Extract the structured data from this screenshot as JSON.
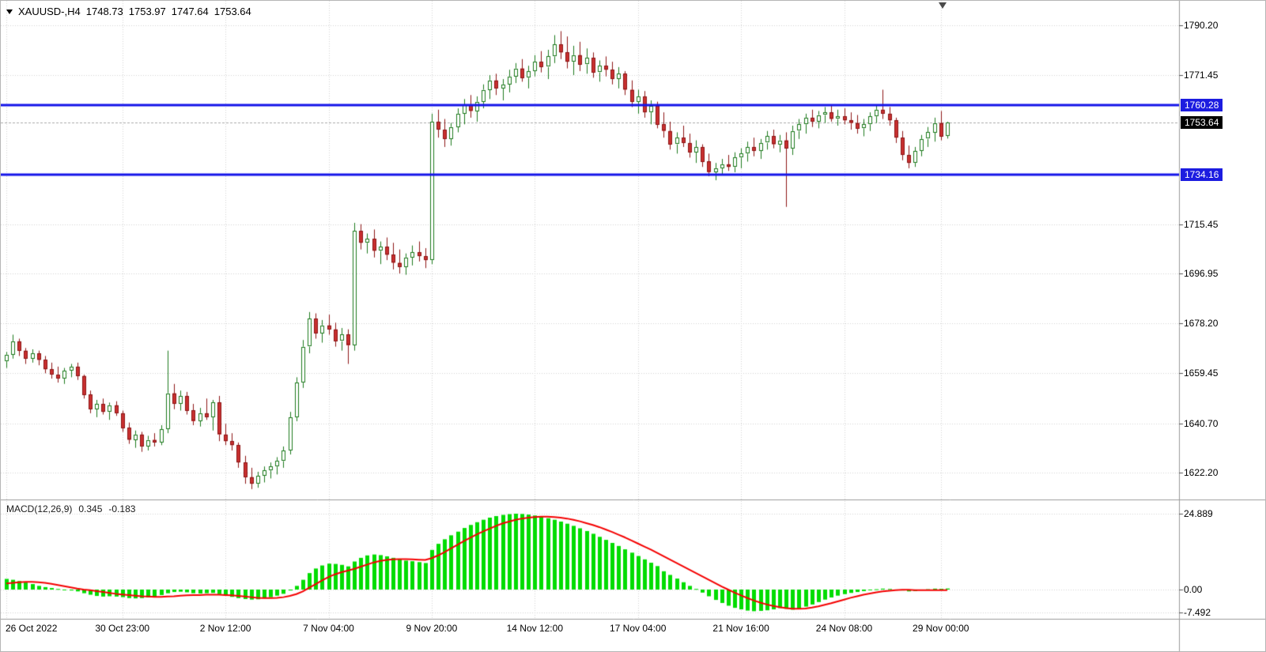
{
  "header": {
    "symbol_period": "XAUUSD-,H4",
    "open": "1748.73",
    "high": "1753.97",
    "low": "1747.64",
    "close": "1753.64"
  },
  "macd_header": {
    "name": "MACD(12,26,9)",
    "main": "0.345",
    "signal": "-0.183"
  },
  "colors": {
    "grid": "#d2d2d2",
    "separator": "#9b9b9b",
    "up": "#1c7a1c",
    "up_fill": "#ffffff",
    "down": "#8c1515",
    "down_fill": "#c93030",
    "hline": "#1414e8",
    "hline_badge": "#1c1ce0",
    "last_line": "#a8a8a8",
    "last_badge": "#000000",
    "macd_hist": "#00dc00",
    "macd_signal": "#f40000"
  },
  "chart_data": {
    "type": "candlestick",
    "title": "XAUUSD-,H4",
    "symbol": "XAUUSD-",
    "timeframe": "H4",
    "price_axis": {
      "range": {
        "min": 1612.4,
        "max": 1799.4
      },
      "ticks": [
        {
          "label": "1790.20",
          "value": 1790.2
        },
        {
          "label": "1771.45",
          "value": 1771.45
        },
        {
          "label": "1715.45",
          "value": 1715.45
        },
        {
          "label": "1696.95",
          "value": 1696.95
        },
        {
          "label": "1678.20",
          "value": 1678.2
        },
        {
          "label": "1659.45",
          "value": 1659.45
        },
        {
          "label": "1640.70",
          "value": 1640.7
        },
        {
          "label": "1622.20",
          "value": 1622.2
        }
      ]
    },
    "macd_axis": {
      "range": {
        "min": -9.6,
        "max": 29.3
      },
      "ticks": [
        {
          "label": "24.889",
          "value": 24.889
        },
        {
          "label": "0.00",
          "value": 0
        },
        {
          "label": "-7.492",
          "value": -7.492
        }
      ]
    },
    "time_axis": [
      {
        "label": "26 Oct 2022",
        "i": 0,
        "align": "left"
      },
      {
        "label": "30 Oct 23:00",
        "i": 18
      },
      {
        "label": "2 Nov 12:00",
        "i": 34
      },
      {
        "label": "7 Nov 04:00",
        "i": 50
      },
      {
        "label": "9 Nov 20:00",
        "i": 66
      },
      {
        "label": "14 Nov 12:00",
        "i": 82
      },
      {
        "label": "17 Nov 04:00",
        "i": 98
      },
      {
        "label": "21 Nov 16:00",
        "i": 114
      },
      {
        "label": "24 Nov 08:00",
        "i": 130
      },
      {
        "label": "29 Nov 00:00",
        "i": 145
      }
    ],
    "hlines": [
      {
        "price": 1760.28,
        "label": "1760.28"
      },
      {
        "price": 1734.16,
        "label": "1734.16"
      }
    ],
    "last_price": {
      "value": 1753.64,
      "label": "1753.64"
    },
    "ohlc": [
      [
        1664.0,
        1667.5,
        1661.5,
        1666.5
      ],
      [
        1666.5,
        1674.0,
        1665.0,
        1671.5
      ],
      [
        1671.5,
        1672.5,
        1666.0,
        1668.0
      ],
      [
        1668.0,
        1669.0,
        1663.0,
        1665.0
      ],
      [
        1665.0,
        1668.5,
        1663.5,
        1667.0
      ],
      [
        1667.0,
        1668.0,
        1662.5,
        1664.5
      ],
      [
        1664.5,
        1666.0,
        1659.5,
        1661.0
      ],
      [
        1661.0,
        1663.5,
        1657.5,
        1659.0
      ],
      [
        1659.0,
        1662.0,
        1656.0,
        1657.5
      ],
      [
        1657.5,
        1661.5,
        1655.5,
        1660.5
      ],
      [
        1660.5,
        1663.0,
        1658.0,
        1662.0
      ],
      [
        1662.0,
        1663.5,
        1657.0,
        1658.5
      ],
      [
        1658.5,
        1659.0,
        1650.0,
        1651.5
      ],
      [
        1651.5,
        1653.0,
        1644.5,
        1646.0
      ],
      [
        1646.0,
        1649.5,
        1643.0,
        1648.0
      ],
      [
        1648.0,
        1650.0,
        1644.0,
        1645.0
      ],
      [
        1645.0,
        1648.5,
        1642.0,
        1647.5
      ],
      [
        1647.5,
        1649.0,
        1643.5,
        1644.5
      ],
      [
        1644.5,
        1645.5,
        1637.5,
        1639.0
      ],
      [
        1639.0,
        1641.0,
        1633.0,
        1634.5
      ],
      [
        1634.5,
        1638.0,
        1631.5,
        1636.5
      ],
      [
        1636.5,
        1637.5,
        1630.0,
        1632.0
      ],
      [
        1632.0,
        1636.0,
        1630.5,
        1634.5
      ],
      [
        1634.5,
        1637.0,
        1632.0,
        1633.5
      ],
      [
        1633.5,
        1640.0,
        1632.5,
        1638.5
      ],
      [
        1638.5,
        1668.0,
        1637.0,
        1652.0
      ],
      [
        1652.0,
        1655.5,
        1646.0,
        1648.0
      ],
      [
        1648.0,
        1653.0,
        1645.5,
        1651.0
      ],
      [
        1651.0,
        1652.5,
        1644.0,
        1645.5
      ],
      [
        1645.5,
        1648.0,
        1640.0,
        1641.5
      ],
      [
        1641.5,
        1646.5,
        1639.5,
        1644.5
      ],
      [
        1644.5,
        1650.0,
        1642.0,
        1643.0
      ],
      [
        1643.0,
        1649.5,
        1638.0,
        1648.5
      ],
      [
        1648.5,
        1651.0,
        1634.0,
        1636.5
      ],
      [
        1636.5,
        1640.5,
        1632.5,
        1634.0
      ],
      [
        1634.0,
        1637.0,
        1630.5,
        1632.5
      ],
      [
        1632.5,
        1633.5,
        1624.0,
        1626.0
      ],
      [
        1626.0,
        1628.5,
        1618.0,
        1620.5
      ],
      [
        1620.5,
        1624.0,
        1616.0,
        1618.0
      ],
      [
        1618.0,
        1622.5,
        1616.5,
        1621.0
      ],
      [
        1621.0,
        1624.5,
        1618.5,
        1623.0
      ],
      [
        1623.0,
        1626.0,
        1620.0,
        1624.5
      ],
      [
        1624.5,
        1628.0,
        1621.5,
        1626.5
      ],
      [
        1626.5,
        1632.0,
        1624.0,
        1630.5
      ],
      [
        1630.5,
        1645.0,
        1629.0,
        1643.0
      ],
      [
        1643.0,
        1658.0,
        1641.5,
        1656.0
      ],
      [
        1656.0,
        1672.0,
        1654.0,
        1669.5
      ],
      [
        1669.5,
        1682.5,
        1667.0,
        1680.0
      ],
      [
        1680.0,
        1682.0,
        1672.5,
        1674.5
      ],
      [
        1674.5,
        1679.5,
        1671.0,
        1677.5
      ],
      [
        1677.5,
        1681.5,
        1674.0,
        1676.0
      ],
      [
        1676.0,
        1678.5,
        1669.5,
        1671.5
      ],
      [
        1671.5,
        1676.5,
        1668.0,
        1674.0
      ],
      [
        1674.0,
        1676.0,
        1663.0,
        1670.0
      ],
      [
        1670.0,
        1716.0,
        1668.0,
        1713.0
      ],
      [
        1713.0,
        1715.5,
        1706.0,
        1708.5
      ],
      [
        1708.5,
        1712.0,
        1704.5,
        1710.0
      ],
      [
        1710.0,
        1713.5,
        1703.0,
        1705.5
      ],
      [
        1705.5,
        1709.0,
        1700.5,
        1707.0
      ],
      [
        1707.0,
        1710.5,
        1702.0,
        1704.0
      ],
      [
        1704.0,
        1708.5,
        1698.5,
        1701.0
      ],
      [
        1701.0,
        1706.0,
        1697.0,
        1699.5
      ],
      [
        1699.5,
        1704.5,
        1696.5,
        1703.0
      ],
      [
        1703.0,
        1707.5,
        1700.0,
        1705.0
      ],
      [
        1705.0,
        1709.0,
        1701.5,
        1703.5
      ],
      [
        1703.5,
        1706.5,
        1699.0,
        1702.0
      ],
      [
        1702.0,
        1757.0,
        1700.5,
        1754.0
      ],
      [
        1754.0,
        1758.5,
        1748.0,
        1751.0
      ],
      [
        1751.0,
        1755.0,
        1744.5,
        1747.5
      ],
      [
        1747.5,
        1753.5,
        1745.0,
        1752.0
      ],
      [
        1752.0,
        1759.0,
        1750.0,
        1757.0
      ],
      [
        1757.0,
        1762.5,
        1753.0,
        1760.5
      ],
      [
        1760.5,
        1764.0,
        1755.5,
        1758.0
      ],
      [
        1758.0,
        1763.5,
        1754.0,
        1761.5
      ],
      [
        1761.5,
        1768.0,
        1759.0,
        1766.0
      ],
      [
        1766.0,
        1771.5,
        1762.5,
        1769.5
      ],
      [
        1769.5,
        1772.0,
        1764.0,
        1766.5
      ],
      [
        1766.5,
        1770.0,
        1762.0,
        1768.0
      ],
      [
        1768.0,
        1773.5,
        1765.0,
        1771.0
      ],
      [
        1771.0,
        1776.0,
        1768.5,
        1774.0
      ],
      [
        1774.0,
        1777.5,
        1769.0,
        1770.5
      ],
      [
        1770.5,
        1775.0,
        1766.5,
        1773.0
      ],
      [
        1773.0,
        1779.0,
        1771.0,
        1776.5
      ],
      [
        1776.5,
        1780.5,
        1772.5,
        1774.5
      ],
      [
        1774.5,
        1781.0,
        1770.0,
        1778.5
      ],
      [
        1778.5,
        1786.5,
        1776.0,
        1783.0
      ],
      [
        1783.0,
        1788.0,
        1777.5,
        1780.0
      ],
      [
        1780.0,
        1786.0,
        1774.0,
        1776.5
      ],
      [
        1776.5,
        1782.5,
        1771.5,
        1779.0
      ],
      [
        1779.0,
        1784.0,
        1773.0,
        1775.5
      ],
      [
        1775.5,
        1781.5,
        1772.0,
        1778.0
      ],
      [
        1778.0,
        1780.0,
        1770.5,
        1772.5
      ],
      [
        1772.5,
        1777.0,
        1769.0,
        1775.0
      ],
      [
        1775.0,
        1778.5,
        1771.0,
        1773.5
      ],
      [
        1773.5,
        1776.5,
        1768.0,
        1770.0
      ],
      [
        1770.0,
        1774.5,
        1766.5,
        1772.0
      ],
      [
        1772.0,
        1773.0,
        1764.0,
        1766.0
      ],
      [
        1766.0,
        1769.5,
        1759.5,
        1761.5
      ],
      [
        1761.5,
        1766.0,
        1757.0,
        1763.5
      ],
      [
        1763.5,
        1765.5,
        1755.5,
        1757.5
      ],
      [
        1757.5,
        1762.0,
        1753.0,
        1760.0
      ],
      [
        1760.0,
        1761.5,
        1751.5,
        1753.0
      ],
      [
        1753.0,
        1757.5,
        1748.0,
        1750.5
      ],
      [
        1750.5,
        1754.0,
        1743.5,
        1745.5
      ],
      [
        1745.5,
        1750.0,
        1742.0,
        1748.0
      ],
      [
        1748.0,
        1752.5,
        1744.5,
        1746.0
      ],
      [
        1746.0,
        1749.5,
        1740.5,
        1742.5
      ],
      [
        1742.5,
        1747.0,
        1738.5,
        1744.5
      ],
      [
        1744.5,
        1745.5,
        1737.0,
        1739.0
      ],
      [
        1739.0,
        1742.0,
        1733.5,
        1735.0
      ],
      [
        1735.0,
        1738.5,
        1732.0,
        1736.5
      ],
      [
        1736.5,
        1740.0,
        1734.0,
        1738.0
      ],
      [
        1738.0,
        1741.5,
        1735.5,
        1737.0
      ],
      [
        1737.0,
        1742.5,
        1735.0,
        1740.5
      ],
      [
        1740.5,
        1744.0,
        1736.5,
        1742.0
      ],
      [
        1742.0,
        1746.5,
        1739.0,
        1744.5
      ],
      [
        1744.5,
        1748.0,
        1741.0,
        1743.0
      ],
      [
        1743.0,
        1747.5,
        1740.0,
        1746.0
      ],
      [
        1746.0,
        1750.5,
        1743.5,
        1748.5
      ],
      [
        1748.5,
        1751.0,
        1744.0,
        1745.5
      ],
      [
        1745.5,
        1749.0,
        1742.5,
        1747.0
      ],
      [
        1747.0,
        1750.0,
        1722.0,
        1744.0
      ],
      [
        1744.0,
        1752.5,
        1741.5,
        1750.5
      ],
      [
        1750.5,
        1755.0,
        1747.5,
        1753.0
      ],
      [
        1753.0,
        1757.0,
        1749.5,
        1755.5
      ],
      [
        1755.5,
        1758.5,
        1752.0,
        1754.0
      ],
      [
        1754.0,
        1758.0,
        1751.5,
        1756.5
      ],
      [
        1756.5,
        1759.5,
        1753.5,
        1757.5
      ],
      [
        1757.5,
        1760.0,
        1754.0,
        1755.0
      ],
      [
        1755.0,
        1758.5,
        1752.5,
        1756.0
      ],
      [
        1756.0,
        1759.0,
        1753.0,
        1754.5
      ],
      [
        1754.5,
        1757.5,
        1751.0,
        1753.5
      ],
      [
        1753.5,
        1756.5,
        1749.5,
        1751.5
      ],
      [
        1751.5,
        1755.0,
        1748.5,
        1753.0
      ],
      [
        1753.0,
        1757.5,
        1750.5,
        1756.0
      ],
      [
        1756.0,
        1760.5,
        1753.5,
        1758.5
      ],
      [
        1758.5,
        1766.0,
        1755.0,
        1757.0
      ],
      [
        1757.0,
        1759.5,
        1752.5,
        1754.5
      ],
      [
        1754.5,
        1755.5,
        1746.0,
        1748.0
      ],
      [
        1748.0,
        1750.5,
        1739.5,
        1741.5
      ],
      [
        1741.5,
        1745.0,
        1736.5,
        1738.5
      ],
      [
        1738.5,
        1744.5,
        1737.0,
        1743.0
      ],
      [
        1743.0,
        1749.0,
        1741.0,
        1747.5
      ],
      [
        1747.5,
        1752.0,
        1744.5,
        1750.0
      ],
      [
        1750.0,
        1755.5,
        1746.5,
        1753.5
      ],
      [
        1753.5,
        1758.0,
        1747.0,
        1748.5
      ],
      [
        1748.73,
        1753.97,
        1747.64,
        1753.64
      ]
    ],
    "macd": {
      "histogram": [
        3.5,
        3.2,
        2.8,
        2.3,
        1.8,
        1.2,
        0.8,
        0.5,
        0.2,
        -0.1,
        -0.3,
        -0.6,
        -1.2,
        -1.7,
        -2.1,
        -2.3,
        -2.2,
        -2.3,
        -2.5,
        -2.8,
        -2.9,
        -2.8,
        -2.6,
        -2.4,
        -1.8,
        -1.2,
        -0.8,
        -0.7,
        -0.9,
        -1.2,
        -1.3,
        -1.2,
        -1.1,
        -1.5,
        -2.0,
        -2.4,
        -2.8,
        -3.1,
        -3.3,
        -3.2,
        -2.9,
        -2.5,
        -2.0,
        -1.4,
        -0.3,
        1.2,
        3.2,
        5.4,
        6.9,
        7.9,
        8.5,
        8.4,
        8.1,
        7.6,
        9.2,
        10.4,
        11.2,
        11.5,
        11.3,
        10.9,
        10.4,
        9.9,
        9.5,
        9.3,
        9.0,
        8.7,
        13.0,
        15.0,
        16.5,
        17.8,
        19.0,
        20.2,
        21.2,
        22.1,
        22.9,
        23.6,
        24.1,
        24.5,
        24.75,
        24.889,
        24.8,
        24.6,
        24.3,
        23.9,
        23.4,
        22.9,
        22.3,
        21.6,
        20.9,
        20.1,
        19.2,
        18.3,
        17.3,
        16.3,
        15.3,
        14.3,
        13.2,
        12.1,
        11.0,
        9.9,
        8.8,
        7.7,
        6.0,
        4.8,
        3.6,
        2.4,
        1.2,
        0.2,
        -1.0,
        -2.2,
        -3.4,
        -4.4,
        -5.3,
        -6.0,
        -6.5,
        -6.9,
        -7.1,
        -7.0,
        -6.8,
        -6.5,
        -6.1,
        -6.3,
        -6.6,
        -6.2,
        -5.6,
        -4.9,
        -4.1,
        -3.3,
        -2.6,
        -2.0,
        -1.5,
        -1.1,
        -0.8,
        -0.5,
        -0.2,
        0.1,
        0.3,
        0.2,
        0.0,
        -0.3,
        -0.6,
        -0.5,
        -0.2,
        0.1,
        0.3,
        0.25,
        0.345
      ],
      "signal": [
        2.0,
        2.2,
        2.4,
        2.5,
        2.5,
        2.4,
        2.2,
        1.9,
        1.5,
        1.1,
        0.7,
        0.3,
        0.0,
        -0.2,
        -0.5,
        -0.8,
        -1.1,
        -1.4,
        -1.6,
        -1.8,
        -2.0,
        -2.2,
        -2.3,
        -2.4,
        -2.4,
        -2.3,
        -2.2,
        -2.0,
        -1.9,
        -1.8,
        -1.8,
        -1.7,
        -1.7,
        -1.7,
        -1.8,
        -1.9,
        -2.1,
        -2.3,
        -2.5,
        -2.7,
        -2.8,
        -2.8,
        -2.7,
        -2.5,
        -2.1,
        -1.5,
        -0.6,
        0.6,
        1.8,
        3.0,
        4.1,
        5.0,
        5.7,
        6.2,
        6.8,
        7.5,
        8.2,
        8.9,
        9.4,
        9.7,
        9.9,
        10.0,
        10.0,
        9.9,
        9.8,
        9.7,
        10.3,
        11.2,
        12.3,
        13.5,
        14.7,
        15.9,
        17.0,
        18.1,
        19.1,
        20.0,
        20.9,
        21.7,
        22.3,
        22.9,
        23.3,
        23.6,
        23.8,
        23.9,
        23.9,
        23.8,
        23.6,
        23.3,
        22.9,
        22.4,
        21.8,
        21.2,
        20.5,
        19.7,
        18.9,
        18.0,
        17.1,
        16.1,
        15.1,
        14.1,
        13.1,
        12.0,
        10.9,
        9.8,
        8.7,
        7.6,
        6.5,
        5.4,
        4.3,
        3.2,
        2.1,
        1.0,
        0.0,
        -1.0,
        -1.9,
        -2.8,
        -3.6,
        -4.3,
        -4.9,
        -5.4,
        -5.8,
        -6.1,
        -6.3,
        -6.3,
        -6.2,
        -5.9,
        -5.5,
        -5.0,
        -4.5,
        -3.9,
        -3.3,
        -2.7,
        -2.2,
        -1.7,
        -1.3,
        -0.9,
        -0.6,
        -0.4,
        -0.2,
        -0.1,
        -0.1,
        -0.2,
        -0.2,
        -0.2,
        -0.2,
        -0.2,
        -0.183
      ]
    }
  }
}
